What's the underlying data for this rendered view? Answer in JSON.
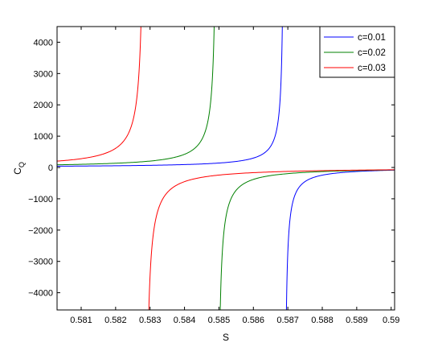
{
  "chart_data": {
    "type": "line",
    "title": "",
    "xlabel": "S",
    "ylabel_main": "C",
    "ylabel_sub": "Q",
    "xlim": [
      0.5803,
      0.5901
    ],
    "ylim": [
      -4550,
      4500
    ],
    "xticks": [
      0.581,
      0.582,
      0.583,
      0.584,
      0.585,
      0.586,
      0.587,
      0.588,
      0.589,
      0.59
    ],
    "xtick_labels": [
      "0.581",
      "0.582",
      "0.583",
      "0.584",
      "0.585",
      "0.586",
      "0.587",
      "0.588",
      "0.589",
      "0.59"
    ],
    "yticks": [
      -4000,
      -3000,
      -2000,
      -1000,
      0,
      1000,
      2000,
      3000,
      4000
    ],
    "ytick_labels": [
      "−4000",
      "−3000",
      "−2000",
      "−1000",
      "0",
      "1000",
      "2000",
      "3000",
      "4000"
    ],
    "grid": false,
    "legend_position": "top-right",
    "series": [
      {
        "name": "c=0.01",
        "color": "#0000ff",
        "pole": 0.5869,
        "strength": 0.27,
        "offset": -0.25
      },
      {
        "name": "c=0.02",
        "color": "#008000",
        "pole": 0.58495,
        "strength": 0.4,
        "offset": -0.4
      },
      {
        "name": "c=0.03",
        "color": "#ff0000",
        "pole": 0.58285,
        "strength": 0.52,
        "offset": -0.55
      }
    ]
  }
}
